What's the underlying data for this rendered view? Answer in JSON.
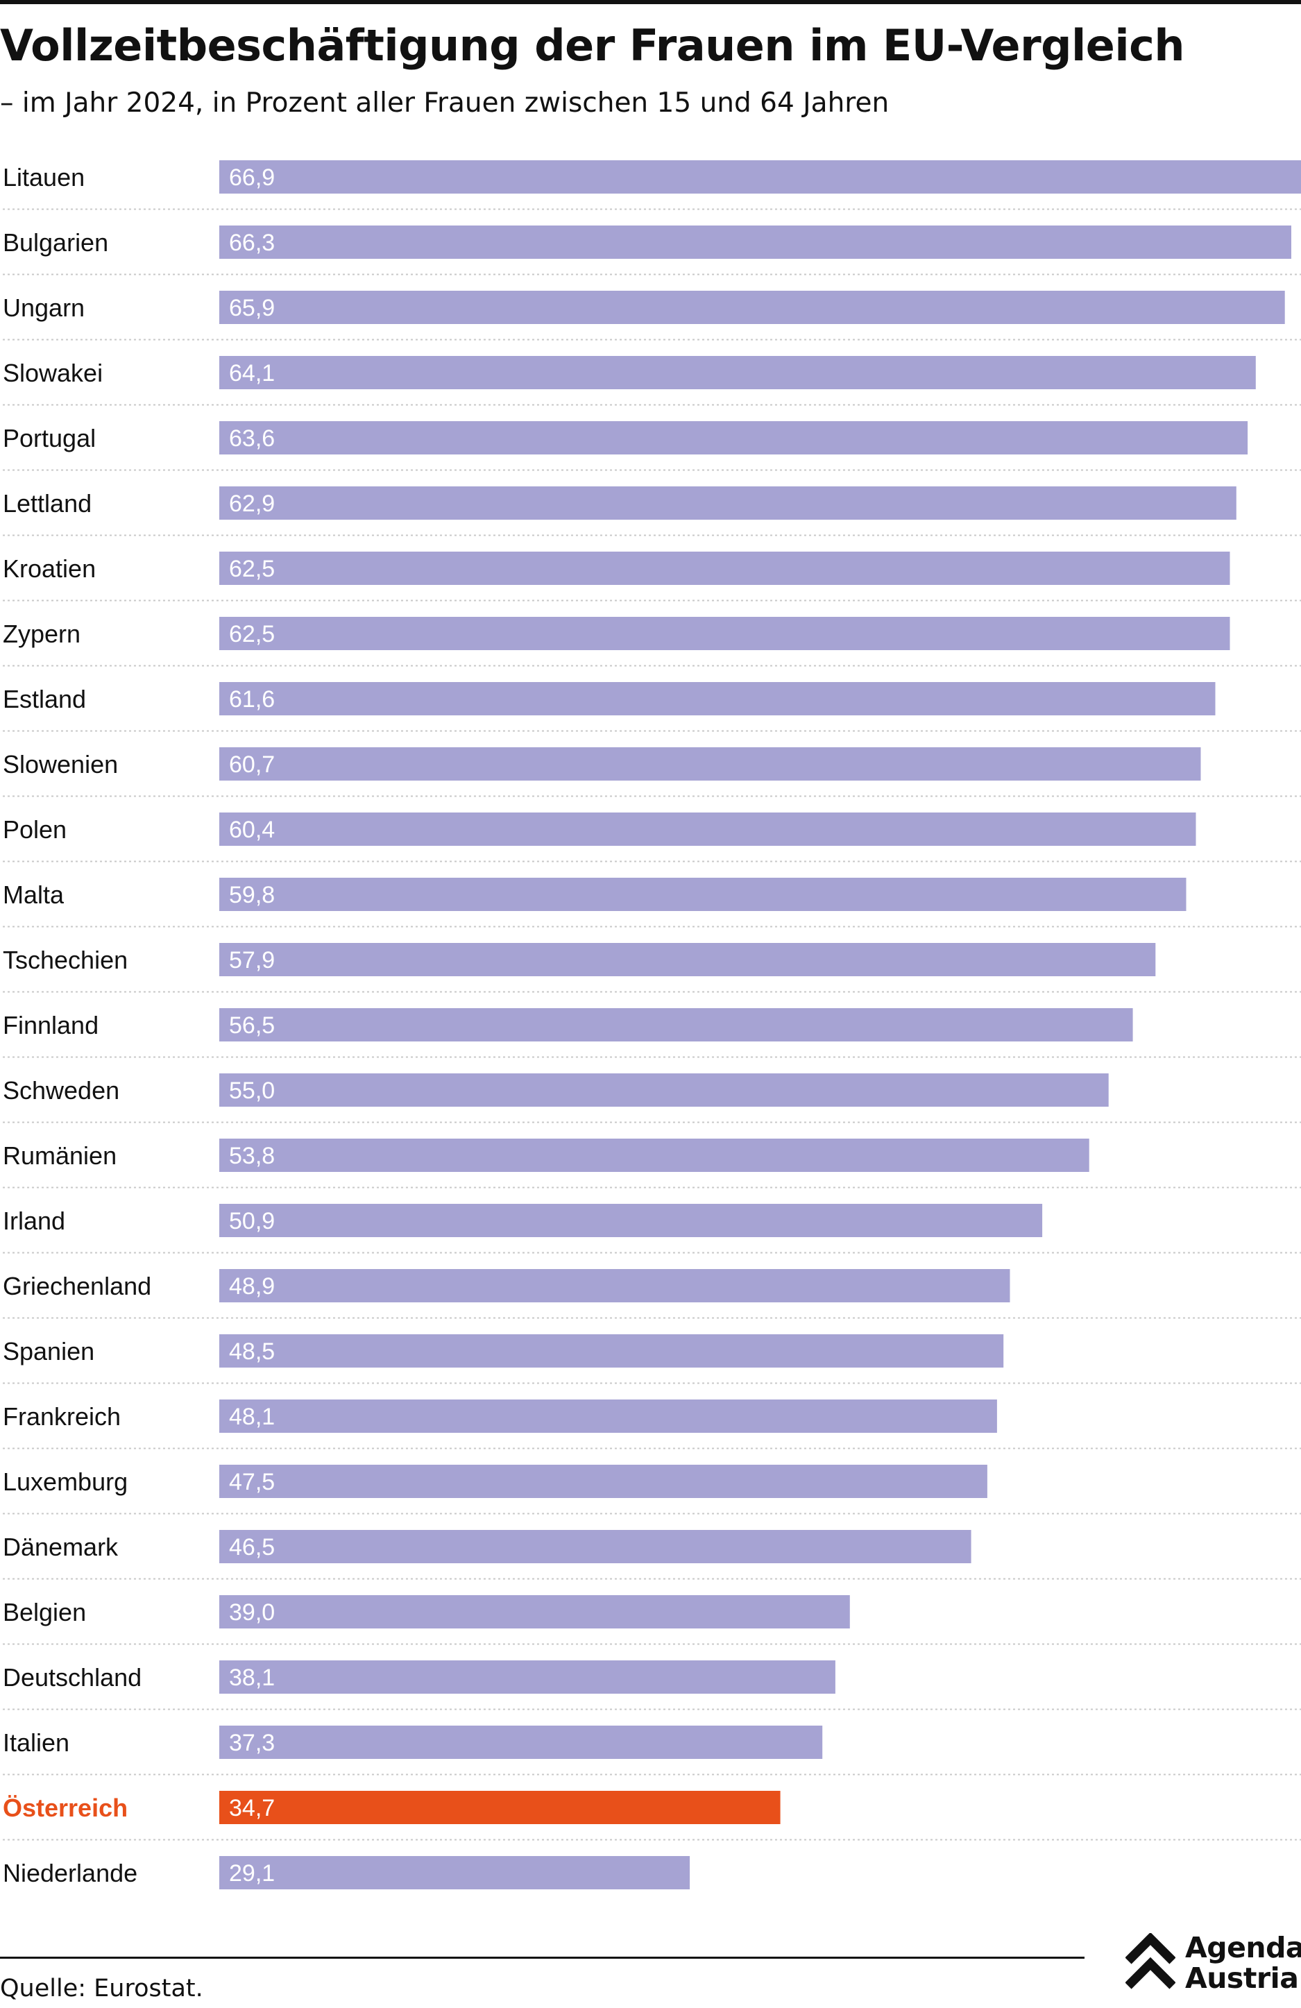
{
  "chart_data": {
    "type": "bar",
    "orientation": "horizontal",
    "title": "Vollzeitbeschäftigung der Frauen im EU-Vergleich",
    "subtitle": "– im Jahr 2024, in Prozent aller Frauen zwischen 15 und 64 Jahren",
    "categories": [
      "Litauen",
      "Bulgarien",
      "Ungarn",
      "Slowakei",
      "Portugal",
      "Lettland",
      "Kroatien",
      "Zypern",
      "Estland",
      "Slowenien",
      "Polen",
      "Malta",
      "Tschechien",
      "Finnland",
      "Schweden",
      "Rumänien",
      "Irland",
      "Griechenland",
      "Spanien",
      "Frankreich",
      "Luxemburg",
      "Dänemark",
      "Belgien",
      "Deutschland",
      "Italien",
      "Österreich",
      "Niederlande"
    ],
    "values": [
      66.9,
      66.3,
      65.9,
      64.1,
      63.6,
      62.9,
      62.5,
      62.5,
      61.6,
      60.7,
      60.4,
      59.8,
      57.9,
      56.5,
      55.0,
      53.8,
      50.9,
      48.9,
      48.5,
      48.1,
      47.5,
      46.5,
      39.0,
      38.1,
      37.3,
      34.7,
      29.1
    ],
    "value_labels": [
      "66,9",
      "66,3",
      "65,9",
      "64,1",
      "63,6",
      "62,9",
      "62,5",
      "62,5",
      "61,6",
      "60,7",
      "60,4",
      "59,8",
      "57,9",
      "56,5",
      "55,0",
      "53,8",
      "50,9",
      "48,9",
      "48,5",
      "48,1",
      "47,5",
      "46,5",
      "39,0",
      "38,1",
      "37,3",
      "34,7",
      "29,1"
    ],
    "highlight": "Österreich",
    "xlim": [
      0,
      66.9
    ],
    "grid": false,
    "legend": "none",
    "colors": {
      "bar": "#a6a3d3",
      "highlight": "#e8501a",
      "value_text": "#ffffff",
      "label_text": "#111111",
      "separator": "#c8c8c8"
    }
  },
  "footer": {
    "source": "Quelle: Eurostat."
  },
  "brand": {
    "line1": "Agenda",
    "line2": "Austria"
  }
}
